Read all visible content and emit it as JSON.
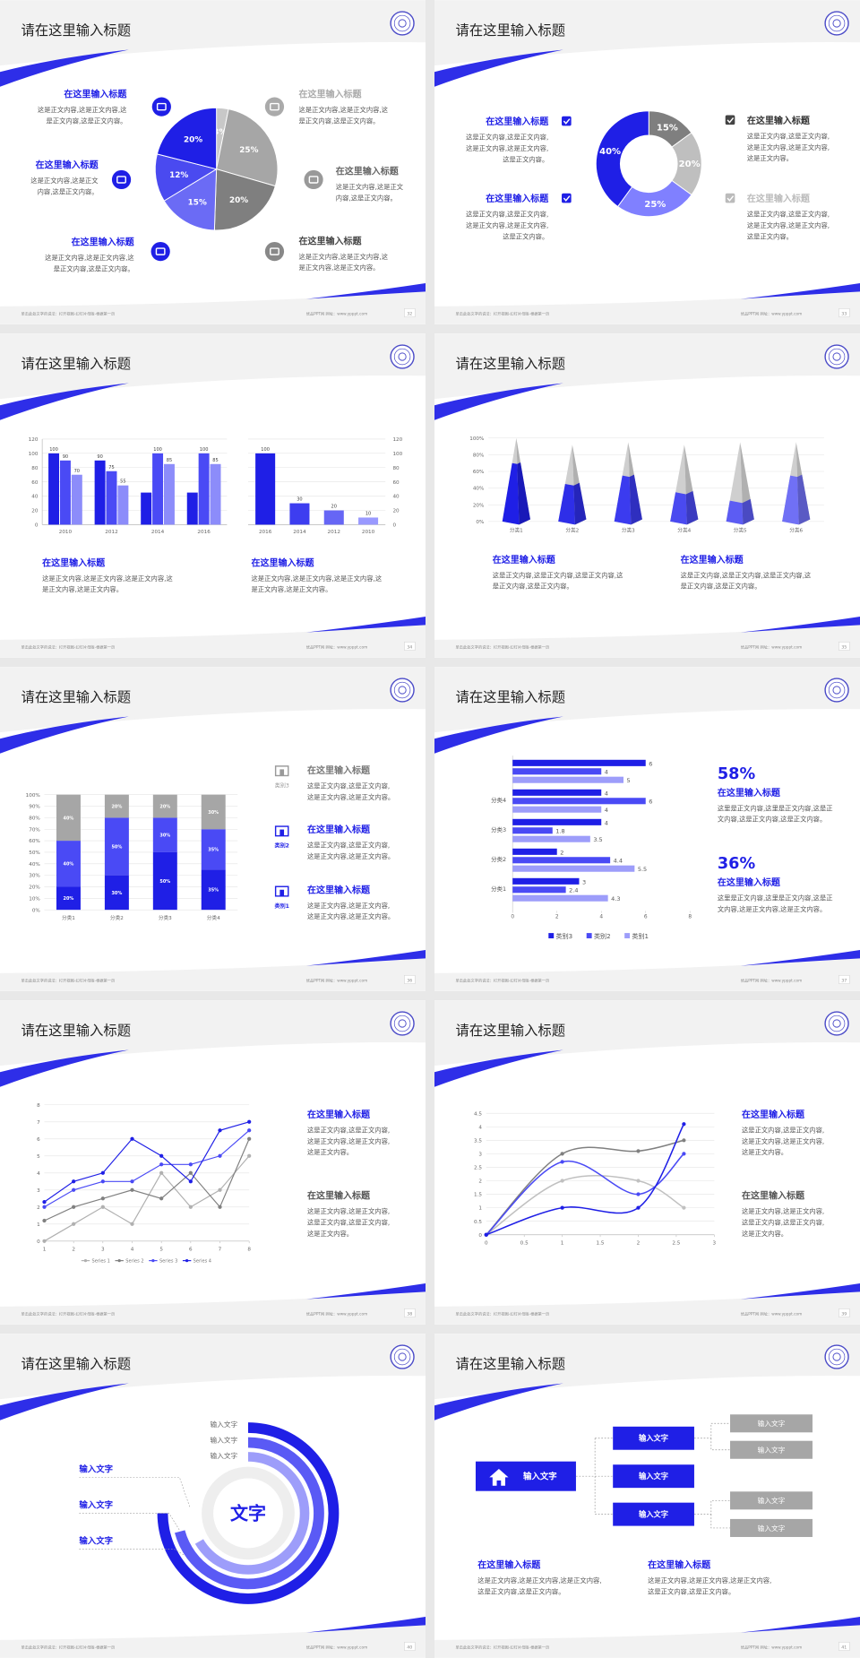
{
  "slides": [
    {
      "title": "请在这里输入标题",
      "footer": "单击此处文字的说法：打开视图-幻灯片母版-根据第一页",
      "site": "优品PPT网  网址：www.ypppt.com",
      "page": "32",
      "chart_data": {
        "type": "pie",
        "values": [
          3,
          25,
          20,
          15,
          12,
          20
        ],
        "value_labels": [
          "3%",
          "25%",
          "20%",
          "15%",
          "12%",
          "20%"
        ],
        "colors": [
          "#c8c8c8",
          "#a6a6a6",
          "#7f7f7f",
          "#6b6bf5",
          "#4a4af0",
          "#1f1fe6"
        ]
      },
      "blocks": [
        {
          "title": "在这里输入标题",
          "lines": [
            "这是正文内容,这是正文内容,这",
            "是正文内容,这是正文内容。"
          ]
        },
        {
          "title": "在这里输入标题",
          "lines": [
            "这是正文内容,这是正文",
            "内容,这是正文内容。"
          ]
        },
        {
          "title": "在这里输入标题",
          "lines": [
            "这是正文内容,这是正文内容,这",
            "是正文内容,这是正文内容。"
          ]
        },
        {
          "title": "在这里输入标题",
          "lines": [
            "这是正文内容,这是正文内容,这",
            "是正文内容,这是正文内容。"
          ]
        },
        {
          "title": "在这里输入标题",
          "lines": [
            "这是正文内容,这是正文",
            "内容,这是正文内容。"
          ]
        },
        {
          "title": "在这里输入标题",
          "lines": [
            "这是正文内容,这是正文内容,这",
            "是正文内容,这是正文内容。"
          ]
        }
      ]
    },
    {
      "title": "请在这里输入标题",
      "footer": "单击此处文字的说法：打开视图-幻灯片母版-根据第一页",
      "site": "优品PPT网  网址：www.ypppt.com",
      "page": "33",
      "chart_data": {
        "type": "doughnut",
        "values": [
          15,
          20,
          25,
          40
        ],
        "value_labels": [
          "15%",
          "20%",
          "25%",
          "40%"
        ],
        "colors": [
          "#7f7f7f",
          "#bfbfbf",
          "#8080ff",
          "#1f1fe6"
        ]
      },
      "blocks": [
        {
          "title": "在这里输入标题",
          "lines": [
            "这是正文内容,这是正文内容,",
            "这是正文内容,这是正文内容,",
            "这是正文内容。"
          ]
        },
        {
          "title": "在这里输入标题",
          "lines": [
            "这是正文内容,这是正文内容,",
            "这是正文内容,这是正文内容,",
            "这是正文内容。"
          ]
        },
        {
          "title": "在这里输入标题",
          "lines": [
            "这是正文内容,这是正文内容,",
            "这是正文内容,这是正文内容,",
            "这是正文内容。"
          ]
        },
        {
          "title": "在这里输入标题",
          "lines": [
            "这是正文内容,这是正文内容,",
            "这是正文内容,这是正文内容,",
            "这是正文内容。"
          ]
        }
      ]
    },
    {
      "title": "请在这里输入标题",
      "footer": "单击此处文字的说法：打开视图-幻灯片母版-根据第一页",
      "site": "优品PPT网  网址：www.ypppt.com",
      "page": "34",
      "chart_data": [
        {
          "type": "bar",
          "categories": [
            "2010",
            "2012",
            "2014",
            "2016"
          ],
          "ylim": [
            0,
            120
          ],
          "yticks": [
            0,
            20,
            40,
            60,
            80,
            100,
            120
          ],
          "series": [
            {
              "color": "#1f1fe6",
              "values": [
                100,
                90,
                45,
                45
              ],
              "value_labels": [
                "100",
                "90",
                null,
                null
              ]
            },
            {
              "color": "#4a4af5",
              "values": [
                90,
                75,
                100,
                100
              ]
            },
            {
              "color": "#8c8cfa",
              "values": [
                70,
                55,
                85,
                85
              ]
            }
          ]
        },
        {
          "type": "bar",
          "categories": [
            "2016",
            "2014",
            "2012",
            "2010"
          ],
          "ylim": [
            0,
            120
          ],
          "yticks": [
            0,
            20,
            40,
            60,
            80,
            100,
            120
          ],
          "values": [
            100,
            30,
            20,
            10
          ],
          "colors": [
            "#1f1fe6",
            "#3d3df0",
            "#6666f5",
            "#9999ff"
          ]
        }
      ],
      "blocks": [
        {
          "title": "在这里输入标题",
          "lines": [
            "这是正文内容,这是正文内容,这是正文内容,这",
            "是正文内容,这是正文内容。"
          ]
        },
        {
          "title": "在这里输入标题",
          "lines": [
            "这是正文内容,这是正文内容,这是正文内容,这",
            "是正文内容,这是正文内容。"
          ]
        }
      ]
    },
    {
      "title": "请在这里输入标题",
      "footer": "单击此处文字的说法：打开视图-幻灯片母版-根据第一页",
      "site": "优品PPT网  网址：www.ypppt.com",
      "page": "35",
      "chart_data": {
        "type": "pyramid",
        "categories": [
          "分类1",
          "分类2",
          "分类3",
          "分类4",
          "分类5",
          "分类6"
        ],
        "ylim": [
          0,
          100
        ],
        "yticks": [
          {
            "value": 0,
            "label": "0%"
          },
          {
            "value": 20,
            "label": "20%"
          },
          {
            "value": 40,
            "label": "40%"
          },
          {
            "value": 60,
            "label": "60%"
          },
          {
            "value": 80,
            "label": "80%"
          },
          {
            "value": 100,
            "label": "100%"
          }
        ],
        "series": [
          {
            "color": "#cfcfcf",
            "values": [
              100,
              92,
              95,
              92,
              95,
              95
            ]
          },
          {
            "colors": [
              "#1f1fe6",
              "#2e2ee8",
              "#3b3bef",
              "#4a4af0",
              "#5c5cf3",
              "#7070f5"
            ],
            "values": [
              70,
              45,
              55,
              35,
              25,
              55
            ]
          }
        ]
      },
      "blocks": [
        {
          "title": "在这里输入标题",
          "lines": [
            "这是正文内容,这是正文内容,这是正文内容,这",
            "是正文内容,这是正文内容。"
          ]
        },
        {
          "title": "在这里输入标题",
          "lines": [
            "这是正文内容,这是正文内容,这是正文内容,这",
            "是正文内容,这是正文内容。"
          ]
        }
      ]
    },
    {
      "title": "请在这里输入标题",
      "footer": "单击此处文字的说法：打开视图-幻灯片母版-根据第一页",
      "site": "优品PPT网  网址：www.ypppt.com",
      "page": "36",
      "chart_data": {
        "type": "stacked",
        "categories": [
          "分类1",
          "分类2",
          "分类3",
          "分类4"
        ],
        "ylim": [
          0,
          100
        ],
        "yticks": [
          {
            "value": 0,
            "label": "0%"
          },
          {
            "value": 10,
            "label": "10%"
          },
          {
            "value": 20,
            "label": "20%"
          },
          {
            "value": 30,
            "label": "30%"
          },
          {
            "value": 40,
            "label": "40%"
          },
          {
            "value": 50,
            "label": "50%"
          },
          {
            "value": 60,
            "label": "60%"
          },
          {
            "value": 70,
            "label": "70%"
          },
          {
            "value": 80,
            "label": "80%"
          },
          {
            "value": 90,
            "label": "90%"
          },
          {
            "value": 100,
            "label": "100%"
          }
        ],
        "series": [
          {
            "name": "类别1",
            "color": "#1f1fe6",
            "values": [
              20,
              30,
              50,
              35
            ],
            "value_labels": [
              "20%",
              "30%",
              "50%",
              "35%"
            ]
          },
          {
            "name": "类别2",
            "color": "#4a4af5",
            "values": [
              40,
              50,
              30,
              35
            ],
            "value_labels": [
              "40%",
              "50%",
              "30%",
              "35%"
            ]
          },
          {
            "name": "类别3",
            "color": "#a6a6a6",
            "values": [
              40,
              20,
              20,
              30
            ],
            "value_labels": [
              "40%",
              "20%",
              "20%",
              "30%"
            ]
          }
        ]
      },
      "blocks": [
        {
          "title": "在这里输入标题",
          "lines": [
            "这是正文内容,这是正文内容,",
            "这是正文内容,这是正文内容。"
          ]
        },
        {
          "title": "在这里输入标题",
          "lines": [
            "这是正文内容,这是正文内容,",
            "这是正文内容,这是正文内容。"
          ]
        },
        {
          "title": "在这里输入标题",
          "lines": [
            "这是正文内容,这是正文内容,",
            "这是正文内容,这是正文内容。"
          ]
        }
      ]
    },
    {
      "title": "请在这里输入标题",
      "footer": "单击此处文字的说法：打开视图-幻灯片母版-根据第一页",
      "site": "优品PPT网  网址：www.ypppt.com",
      "page": "37",
      "chart_data": {
        "type": "hbar",
        "categories": [
          null,
          "分类4",
          "分类3",
          "分类2",
          "分类1"
        ],
        "xlim": [
          0,
          8
        ],
        "xticks": [
          0,
          2,
          4,
          6,
          8
        ],
        "series": [
          {
            "name": "类别3",
            "color": "#1f1fe6",
            "values": [
              6,
              4,
              4,
              2,
              3
            ]
          },
          {
            "name": "类别2",
            "color": "#4a4af5",
            "values": [
              4,
              6,
              1.8,
              4.4,
              2.4
            ]
          },
          {
            "name": "类别1",
            "color": "#9d9dfa",
            "values": [
              5,
              4,
              3.5,
              5.5,
              4.3
            ]
          }
        ]
      },
      "blocks": [
        {
          "figure": "58%",
          "title": "在这里输入标题",
          "lines": [
            "这里是正文内容,这里是正文内容,这是正",
            "文内容,这是正文内容,这是正文内容。"
          ]
        },
        {
          "figure": "36%",
          "title": "在这里输入标题",
          "lines": [
            "这里是正文内容,这里是正文内容,这是正",
            "文内容,这是正文内容,这是正文内容。"
          ]
        }
      ]
    },
    {
      "title": "请在这里输入标题",
      "footer": "单击此处文字的说法：打开视图-幻灯片母版-根据第一页",
      "site": "优品PPT网  网址：www.ypppt.com",
      "page": "38",
      "chart_data": {
        "type": "line",
        "x": [
          1,
          2,
          3,
          4,
          5,
          6,
          7,
          8
        ],
        "xlim": [
          1,
          8
        ],
        "xticks": [
          1,
          2,
          3,
          4,
          5,
          6,
          7,
          8
        ],
        "ylim": [
          0,
          8
        ],
        "yticks": [
          0,
          1,
          2,
          3,
          4,
          5,
          6,
          7,
          8
        ],
        "series": [
          {
            "name": "Series 1",
            "color": "#b0b0b0",
            "values": [
              0,
              1,
              2,
              1,
              4,
              2,
              3,
              5
            ]
          },
          {
            "name": "Series 2",
            "color": "#808080",
            "values": [
              1.2,
              2,
              2.5,
              3,
              2.5,
              4,
              2,
              6
            ]
          },
          {
            "name": "Series 3",
            "color": "#4a4af5",
            "values": [
              2,
              3,
              3.5,
              3.5,
              4.5,
              4.5,
              5,
              6.5
            ]
          },
          {
            "name": "Series 4",
            "color": "#1f1fe6",
            "values": [
              2.3,
              3.5,
              4,
              6,
              5,
              3.5,
              6.5,
              7
            ]
          }
        ]
      },
      "blocks": [
        {
          "title": "在这里输入标题",
          "lines": [
            "这是正文内容,这是正文内容,",
            "这是正文内容,这是正文内容,",
            "这是正文内容。"
          ]
        },
        {
          "title": "在这里输入标题",
          "lines": [
            "这是正文内容,这是正文内容,",
            "这是正文内容,这是正文内容,",
            "这是正文内容。"
          ]
        }
      ]
    },
    {
      "title": "请在这里输入标题",
      "footer": "单击此处文字的说法：打开视图-幻灯片母版-根据第一页",
      "site": "优品PPT网  网址：www.ypppt.com",
      "page": "39",
      "chart_data": {
        "type": "spline",
        "x": [
          0,
          1,
          2,
          2.6
        ],
        "xlim": [
          0,
          3
        ],
        "xticks": [
          0,
          0.5,
          1,
          1.5,
          2,
          2.5,
          3
        ],
        "ylim": [
          0,
          4.5
        ],
        "yticks": [
          0,
          0.5,
          1,
          1.5,
          2,
          2.5,
          3,
          3.5,
          4,
          4.5
        ],
        "series": [
          {
            "color": "#c0c0c0",
            "values": [
              0,
              2,
              2,
              1
            ]
          },
          {
            "color": "#808080",
            "values": [
              0,
              3,
              3.1,
              3.5
            ]
          },
          {
            "color": "#4a4af5",
            "values": [
              0,
              2.7,
              1.5,
              3
            ]
          },
          {
            "color": "#1f1fe6",
            "values": [
              0,
              1,
              1,
              4.1
            ]
          }
        ]
      },
      "blocks": [
        {
          "title": "在这里输入标题",
          "lines": [
            "这是正文内容,这是正文内容,",
            "这是正文内容,这是正文内容,",
            "这是正文内容。"
          ]
        },
        {
          "title": "在这里输入标题",
          "lines": [
            "这是正文内容,这是正文内容,",
            "这是正文内容,这是正文内容,",
            "这是正文内容。"
          ]
        }
      ]
    },
    {
      "title": "请在这里输入标题",
      "footer": "单击此处文字的说法：打开视图-幻灯片母版-根据第一页",
      "site": "优品PPT网  网址：www.ypppt.com",
      "page": "40",
      "rings": {
        "center": "文字",
        "ring_labels": [
          "输入文字",
          "输入文字",
          "输入文字"
        ],
        "side_labels": [
          "输入文字",
          "输入文字",
          "输入文字"
        ]
      },
      "blocks": []
    },
    {
      "title": "请在这里输入标题",
      "footer": "单击此处文字的说法：打开视图-幻灯片母版-根据第一页",
      "site": "优品PPT网  网址：www.ypppt.com",
      "page": "41",
      "tree": {
        "root": "输入文字",
        "branches": [
          "输入文字",
          "输入文字",
          "输入文字"
        ],
        "leaves": [
          "输入文字",
          "输入文字",
          "输入文字",
          "输入文字"
        ]
      },
      "blocks": [
        {
          "title": "在这里输入标题",
          "lines": [
            "这是正文内容,这是正文内容,这是正文内容,",
            "这是正文内容,这是正文内容。"
          ]
        },
        {
          "title": "在这里输入标题",
          "lines": [
            "这是正文内容,这是正文内容,这是正文内容,",
            "这是正文内容,这是正文内容。"
          ]
        }
      ]
    }
  ]
}
